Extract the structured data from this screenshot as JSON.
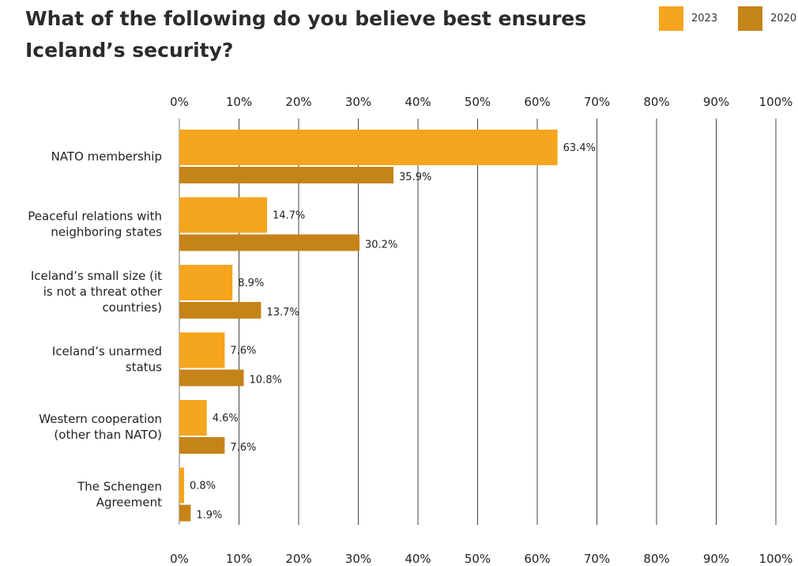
{
  "chart_data": {
    "type": "bar",
    "orientation": "horizontal",
    "title": "What of the following do you believe best ensures Iceland’s security?",
    "categories": [
      [
        "NATO membership"
      ],
      [
        "Peaceful relations with",
        "neighboring states"
      ],
      [
        "Iceland’s small size (it",
        "is not a threat other",
        "countries)"
      ],
      [
        "Iceland’s unarmed",
        "status"
      ],
      [
        "Western cooperation",
        "(other than NATO)"
      ],
      [
        "The Schengen",
        "Agreement"
      ]
    ],
    "series": [
      {
        "name": "2023",
        "color": "#F5A51E",
        "values": [
          63.4,
          14.7,
          8.9,
          7.6,
          4.6,
          0.8
        ],
        "labels": [
          "63.4%",
          "14.7%",
          "8.9%",
          "7.6%",
          "4.6%",
          "0.8%"
        ]
      },
      {
        "name": "2020",
        "color": "#C58418",
        "values": [
          35.9,
          30.2,
          13.7,
          10.8,
          7.6,
          1.9
        ],
        "labels": [
          "35.9%",
          "30.2%",
          "13.7%",
          "10.8%",
          "7.6%",
          "1.9%"
        ]
      }
    ],
    "xlim": [
      0,
      100
    ],
    "xticks": [
      "0%",
      "10%",
      "20%",
      "30%",
      "40%",
      "50%",
      "60%",
      "70%",
      "80%",
      "90%",
      "100%"
    ],
    "grid": true,
    "legend_position": "top-right"
  }
}
